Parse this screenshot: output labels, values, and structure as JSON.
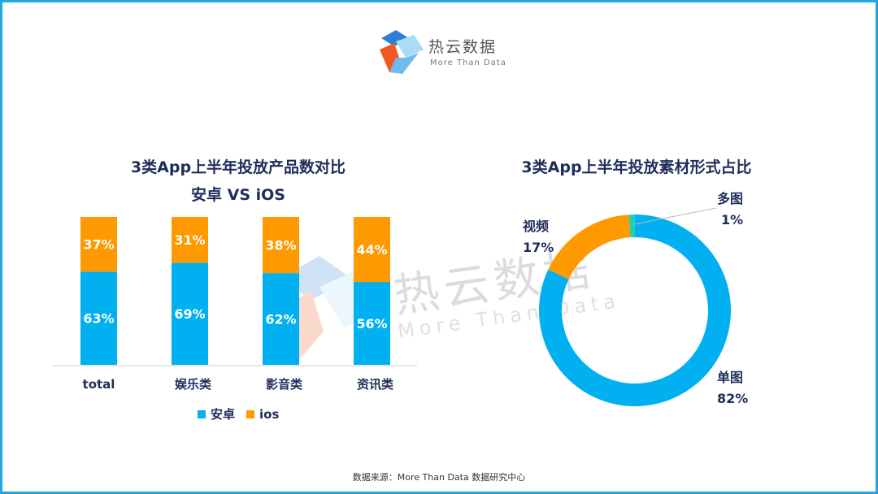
{
  "logo": {
    "name": "热云数据",
    "tagline": "More Than Data"
  },
  "watermark": {
    "name": "热云数据",
    "tagline": "More Than Data"
  },
  "footer": "数据来源：More  Than  Data  数据研究中心",
  "colors": {
    "android": "#00b0f0",
    "ios": "#ff9900",
    "multi": "#1fcfb0",
    "title": "#1f2d5a"
  },
  "chart_data": [
    {
      "type": "bar",
      "stacked": true,
      "title": "3类App上半年投放产品数对比",
      "subtitle": "安卓 VS iOS",
      "categories": [
        "total",
        "娱乐类",
        "影音类",
        "资讯类"
      ],
      "series": [
        {
          "name": "安卓",
          "values": [
            63,
            69,
            62,
            56
          ],
          "labels": [
            "63%",
            "69%",
            "62%",
            "56%"
          ]
        },
        {
          "name": "ios",
          "values": [
            37,
            31,
            38,
            44
          ],
          "labels": [
            "37%",
            "31%",
            "38%",
            "44%"
          ]
        }
      ],
      "ylim": [
        0,
        100
      ],
      "legend": "bottom"
    },
    {
      "type": "pie",
      "donut": true,
      "title": "3类App上半年投放素材形式占比",
      "slices": [
        {
          "name": "单图",
          "value": 82,
          "label": "82%"
        },
        {
          "name": "视频",
          "value": 17,
          "label": "17%"
        },
        {
          "name": "多图",
          "value": 1,
          "label": "1%"
        }
      ]
    }
  ]
}
